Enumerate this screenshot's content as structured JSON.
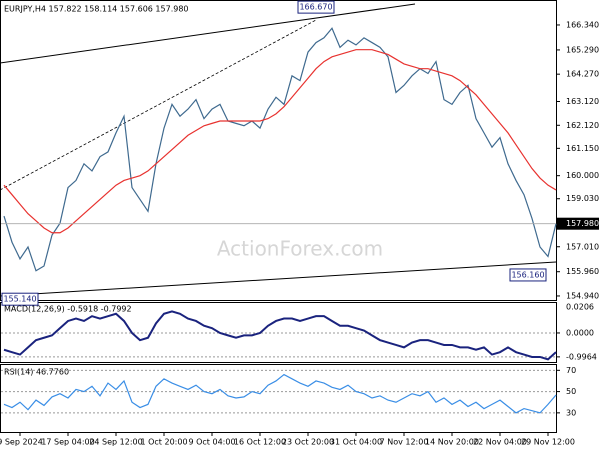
{
  "chart_data": [
    {
      "type": "line",
      "title": "EURJPY,H4  157.822 158.114 157.606 157.980",
      "watermark": "ActionForex.com",
      "categories": [
        null,
        null,
        "9 Sep 2024",
        null,
        null,
        null,
        null,
        null,
        "17 Sep 04:00",
        null,
        null,
        null,
        null,
        null,
        "24 Sep 12:00",
        null,
        null,
        null,
        null,
        null,
        "1 Oct 20:00",
        null,
        null,
        null,
        null,
        null,
        "9 Oct 04:00",
        null,
        null,
        null,
        null,
        null,
        "16 Oct 12:00",
        null,
        null,
        null,
        null,
        null,
        "23 Oct 20:00",
        null,
        null,
        null,
        null,
        null,
        "31 Oct 04:00",
        null,
        null,
        null,
        null,
        null,
        "7 Nov 12:00",
        null,
        null,
        null,
        null,
        null,
        "14 Nov 20:00",
        null,
        null,
        null,
        null,
        null,
        "22 Nov 04:00",
        null,
        null,
        null,
        null,
        null,
        "29 Nov 12:00",
        null
      ],
      "series": [
        {
          "color": "#3f6a8f",
          "values": [
            158.3,
            157.2,
            156.5,
            157.0,
            156.0,
            156.2,
            157.5,
            158.0,
            159.5,
            159.8,
            160.5,
            160.2,
            160.8,
            161.0,
            161.8,
            162.5,
            159.5,
            159.0,
            158.5,
            160.5,
            162.0,
            163.0,
            162.5,
            162.8,
            163.2,
            162.4,
            162.8,
            163.0,
            162.3,
            162.2,
            162.1,
            162.3,
            162.0,
            162.8,
            163.3,
            163.0,
            164.2,
            164.0,
            165.2,
            165.6,
            165.8,
            166.2,
            165.4,
            165.7,
            165.5,
            165.8,
            165.6,
            165.4,
            165.0,
            163.5,
            163.8,
            164.2,
            164.5,
            164.3,
            164.8,
            163.2,
            163.0,
            163.5,
            163.8,
            162.4,
            161.8,
            161.2,
            161.6,
            160.5,
            159.8,
            159.2,
            158.2,
            157.0,
            156.6,
            157.98
          ]
        },
        {
          "color": "#e8322f",
          "values": [
            159.6,
            159.2,
            158.8,
            158.4,
            158.1,
            157.8,
            157.6,
            157.6,
            157.8,
            158.1,
            158.4,
            158.7,
            159.0,
            159.3,
            159.6,
            159.8,
            159.9,
            160.0,
            160.2,
            160.5,
            160.8,
            161.1,
            161.4,
            161.7,
            161.9,
            162.1,
            162.2,
            162.3,
            162.3,
            162.3,
            162.3,
            162.3,
            162.3,
            162.4,
            162.6,
            162.9,
            163.3,
            163.7,
            164.1,
            164.5,
            164.8,
            165.0,
            165.1,
            165.2,
            165.3,
            165.3,
            165.3,
            165.2,
            165.1,
            164.9,
            164.7,
            164.6,
            164.5,
            164.5,
            164.4,
            164.3,
            164.2,
            164.0,
            163.7,
            163.4,
            163.0,
            162.6,
            162.2,
            161.8,
            161.3,
            160.8,
            160.3,
            159.9,
            159.6,
            159.4
          ]
        }
      ],
      "ylim": [
        154.77,
        167.18
      ],
      "yticks": [
        {
          "value": 166.34,
          "label": "166.340"
        },
        {
          "value": 165.29,
          "label": "165.290"
        },
        {
          "value": 164.27,
          "label": "164.270"
        },
        {
          "value": 163.12,
          "label": "163.120"
        },
        {
          "value": 162.12,
          "label": "162.120"
        },
        {
          "value": 161.15,
          "label": "161.150"
        },
        {
          "value": 160,
          "label": "160.000"
        },
        {
          "value": 159.03,
          "label": "159.030"
        },
        {
          "value": 157.01,
          "label": "157.010"
        },
        {
          "value": 155.96,
          "label": "155.960"
        },
        {
          "value": 154.94,
          "label": "154.940"
        }
      ],
      "last_value": {
        "value": 157.98,
        "label": "157.980"
      },
      "annotations": [
        {
          "value": 166.67,
          "label": "166.670"
        },
        {
          "value": 155.14,
          "label": "155.140"
        },
        {
          "value": 156.16,
          "label": "156.160"
        }
      ]
    },
    {
      "type": "line",
      "title": "MACD(12,26,9) -0.5918 -0.7992",
      "max_label": "0.0206",
      "series": [
        {
          "color": "#1a237e",
          "values": [
            -0.7,
            -0.8,
            -0.9,
            -0.6,
            -0.3,
            -0.2,
            -0.1,
            0.2,
            0.5,
            0.6,
            0.5,
            0.7,
            0.6,
            0.7,
            0.8,
            0.5,
            0.0,
            -0.3,
            -0.2,
            0.4,
            0.8,
            0.9,
            0.8,
            0.6,
            0.5,
            0.3,
            0.2,
            0.0,
            -0.1,
            -0.2,
            -0.1,
            -0.1,
            0.0,
            0.3,
            0.5,
            0.6,
            0.6,
            0.5,
            0.6,
            0.7,
            0.7,
            0.5,
            0.3,
            0.3,
            0.2,
            0.1,
            -0.1,
            -0.3,
            -0.4,
            -0.5,
            -0.6,
            -0.4,
            -0.3,
            -0.3,
            -0.4,
            -0.5,
            -0.5,
            -0.6,
            -0.6,
            -0.7,
            -0.6,
            -0.9,
            -0.8,
            -0.6,
            -0.8,
            -0.9,
            -1.0,
            -1.0,
            -1.1,
            -0.8
          ]
        }
      ],
      "ylim": [
        -1.21,
        1.29
      ],
      "yticks": [
        {
          "value": 0,
          "label": "0.0000"
        },
        -0.9964
      ]
    },
    {
      "type": "line",
      "title": "RSI(14) 46.7760",
      "series": [
        {
          "color": "#3a8ee6",
          "values": [
            38,
            35,
            40,
            33,
            42,
            37,
            45,
            48,
            44,
            52,
            50,
            55,
            46,
            58,
            52,
            60,
            40,
            35,
            38,
            55,
            62,
            58,
            55,
            52,
            56,
            50,
            48,
            52,
            46,
            44,
            45,
            50,
            48,
            56,
            60,
            66,
            62,
            58,
            55,
            60,
            58,
            54,
            52,
            56,
            50,
            48,
            44,
            46,
            42,
            40,
            44,
            48,
            46,
            50,
            40,
            44,
            38,
            42,
            36,
            40,
            34,
            38,
            42,
            36,
            30,
            34,
            32,
            30,
            38,
            46.776
          ]
        }
      ],
      "ylim": [
        12,
        75
      ],
      "yticks": [
        70,
        50,
        30
      ]
    }
  ]
}
